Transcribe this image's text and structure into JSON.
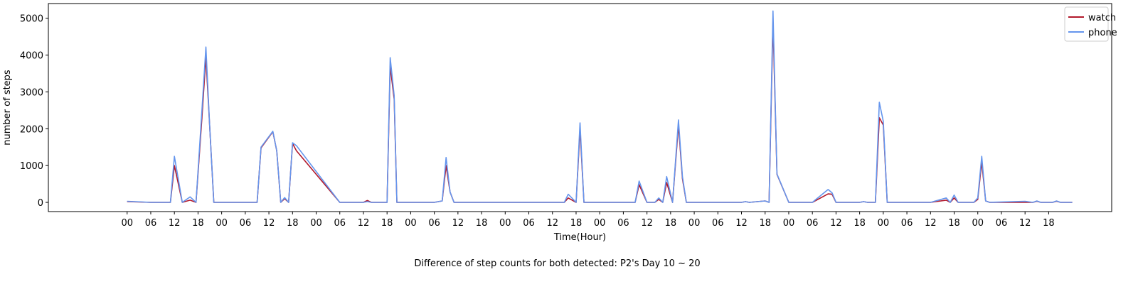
{
  "chart_data": {
    "type": "line",
    "title": "",
    "caption": "Difference of step counts for both detected: P2's Day 10 ~ 20",
    "xlabel": "Time(Hour)",
    "ylabel": "number of steps",
    "ylim": [
      -250,
      5400
    ],
    "yticks": [
      0,
      1000,
      2000,
      3000,
      4000,
      5000
    ],
    "xlim": [
      -20,
      250
    ],
    "xticks": [
      0,
      6,
      12,
      18,
      24,
      30,
      36,
      42,
      48,
      54,
      60,
      66,
      72,
      78,
      84,
      90,
      96,
      102,
      108,
      114,
      120,
      126,
      132,
      138,
      144,
      150,
      156,
      162,
      168,
      174,
      180,
      186,
      192,
      198,
      204,
      210,
      216,
      222,
      228,
      234
    ],
    "xtick_labels": [
      "00",
      "06",
      "12",
      "18",
      "00",
      "06",
      "12",
      "18",
      "00",
      "06",
      "12",
      "18",
      "00",
      "06",
      "12",
      "18",
      "00",
      "06",
      "12",
      "18",
      "00",
      "06",
      "12",
      "18",
      "00",
      "06",
      "12",
      "18",
      "00",
      "06",
      "12",
      "18",
      "00",
      "06",
      "12",
      "18",
      "00",
      "06",
      "12",
      "18"
    ],
    "legend_position": "top-right",
    "grid": false,
    "series": [
      {
        "name": "watch",
        "color": "#b2182b",
        "points": [
          [
            0,
            20
          ],
          [
            6,
            0
          ],
          [
            11,
            0
          ],
          [
            12,
            1000
          ],
          [
            14,
            0
          ],
          [
            16,
            60
          ],
          [
            17.5,
            0
          ],
          [
            19,
            2300
          ],
          [
            20,
            3950
          ],
          [
            21,
            2000
          ],
          [
            22,
            0
          ],
          [
            33,
            0
          ],
          [
            34,
            1480
          ],
          [
            37,
            1920
          ],
          [
            38,
            1400
          ],
          [
            39,
            0
          ],
          [
            40,
            100
          ],
          [
            41,
            0
          ],
          [
            42,
            1600
          ],
          [
            43,
            1400
          ],
          [
            54,
            0
          ],
          [
            60,
            0
          ],
          [
            61,
            50
          ],
          [
            62,
            0
          ],
          [
            66,
            0
          ],
          [
            66.8,
            3700
          ],
          [
            67.8,
            2800
          ],
          [
            68.5,
            0
          ],
          [
            78,
            0
          ],
          [
            80,
            40
          ],
          [
            81,
            1000
          ],
          [
            82,
            280
          ],
          [
            83,
            0
          ],
          [
            111,
            0
          ],
          [
            112,
            120
          ],
          [
            114,
            0
          ],
          [
            115,
            2000
          ],
          [
            116,
            0
          ],
          [
            129,
            0
          ],
          [
            130,
            480
          ],
          [
            132,
            0
          ],
          [
            134,
            0
          ],
          [
            135,
            80
          ],
          [
            136,
            0
          ],
          [
            137,
            540
          ],
          [
            138.5,
            0
          ],
          [
            140,
            2100
          ],
          [
            141,
            640
          ],
          [
            142,
            0
          ],
          [
            156,
            0
          ],
          [
            157,
            20
          ],
          [
            158,
            0
          ],
          [
            162,
            40
          ],
          [
            163,
            0
          ],
          [
            164,
            4900
          ],
          [
            165,
            760
          ],
          [
            168,
            0
          ],
          [
            174,
            0
          ],
          [
            178,
            230
          ],
          [
            179,
            220
          ],
          [
            180,
            0
          ],
          [
            186,
            0
          ],
          [
            187,
            20
          ],
          [
            188,
            0
          ],
          [
            190,
            0
          ],
          [
            191,
            2300
          ],
          [
            192,
            2100
          ],
          [
            193,
            0
          ],
          [
            204,
            0
          ],
          [
            208,
            60
          ],
          [
            209,
            0
          ],
          [
            210,
            120
          ],
          [
            211,
            0
          ],
          [
            215,
            0
          ],
          [
            216,
            80
          ],
          [
            217,
            1100
          ],
          [
            218,
            40
          ],
          [
            219,
            0
          ],
          [
            228,
            0
          ],
          [
            230,
            0
          ],
          [
            231,
            30
          ],
          [
            232,
            0
          ],
          [
            235,
            0
          ],
          [
            236,
            30
          ],
          [
            237,
            0
          ],
          [
            240,
            0
          ]
        ]
      },
      {
        "name": "phone",
        "color": "#6495ed",
        "points": [
          [
            0,
            30
          ],
          [
            6,
            0
          ],
          [
            11,
            0
          ],
          [
            12,
            1250
          ],
          [
            14,
            0
          ],
          [
            16,
            150
          ],
          [
            17.5,
            0
          ],
          [
            19,
            2500
          ],
          [
            20,
            4220
          ],
          [
            21,
            2000
          ],
          [
            22,
            0
          ],
          [
            33,
            0
          ],
          [
            34,
            1500
          ],
          [
            37,
            1930
          ],
          [
            38,
            1400
          ],
          [
            39,
            0
          ],
          [
            40,
            130
          ],
          [
            41,
            0
          ],
          [
            42,
            1620
          ],
          [
            43,
            1540
          ],
          [
            54,
            0
          ],
          [
            60,
            0
          ],
          [
            61,
            20
          ],
          [
            62,
            0
          ],
          [
            66,
            0
          ],
          [
            66.8,
            3930
          ],
          [
            67.8,
            2900
          ],
          [
            68.5,
            0
          ],
          [
            78,
            0
          ],
          [
            80,
            40
          ],
          [
            81,
            1220
          ],
          [
            82,
            280
          ],
          [
            83,
            0
          ],
          [
            111,
            0
          ],
          [
            112,
            220
          ],
          [
            114,
            0
          ],
          [
            115,
            2160
          ],
          [
            116,
            0
          ],
          [
            129,
            0
          ],
          [
            130,
            580
          ],
          [
            132,
            0
          ],
          [
            134,
            0
          ],
          [
            135,
            120
          ],
          [
            136,
            0
          ],
          [
            137,
            700
          ],
          [
            138.5,
            0
          ],
          [
            140,
            2240
          ],
          [
            141,
            700
          ],
          [
            142,
            0
          ],
          [
            156,
            0
          ],
          [
            157,
            20
          ],
          [
            158,
            0
          ],
          [
            162,
            40
          ],
          [
            163,
            0
          ],
          [
            164,
            5200
          ],
          [
            165,
            770
          ],
          [
            168,
            0
          ],
          [
            174,
            0
          ],
          [
            178,
            350
          ],
          [
            179,
            260
          ],
          [
            180,
            0
          ],
          [
            186,
            0
          ],
          [
            187,
            20
          ],
          [
            188,
            0
          ],
          [
            190,
            0
          ],
          [
            191,
            2720
          ],
          [
            192,
            2200
          ],
          [
            193,
            0
          ],
          [
            204,
            0
          ],
          [
            208,
            120
          ],
          [
            209,
            0
          ],
          [
            210,
            200
          ],
          [
            211,
            0
          ],
          [
            215,
            0
          ],
          [
            216,
            120
          ],
          [
            217,
            1250
          ],
          [
            218,
            40
          ],
          [
            219,
            0
          ],
          [
            228,
            30
          ],
          [
            230,
            0
          ],
          [
            231,
            40
          ],
          [
            232,
            0
          ],
          [
            235,
            0
          ],
          [
            236,
            40
          ],
          [
            237,
            0
          ],
          [
            240,
            0
          ]
        ]
      }
    ]
  }
}
